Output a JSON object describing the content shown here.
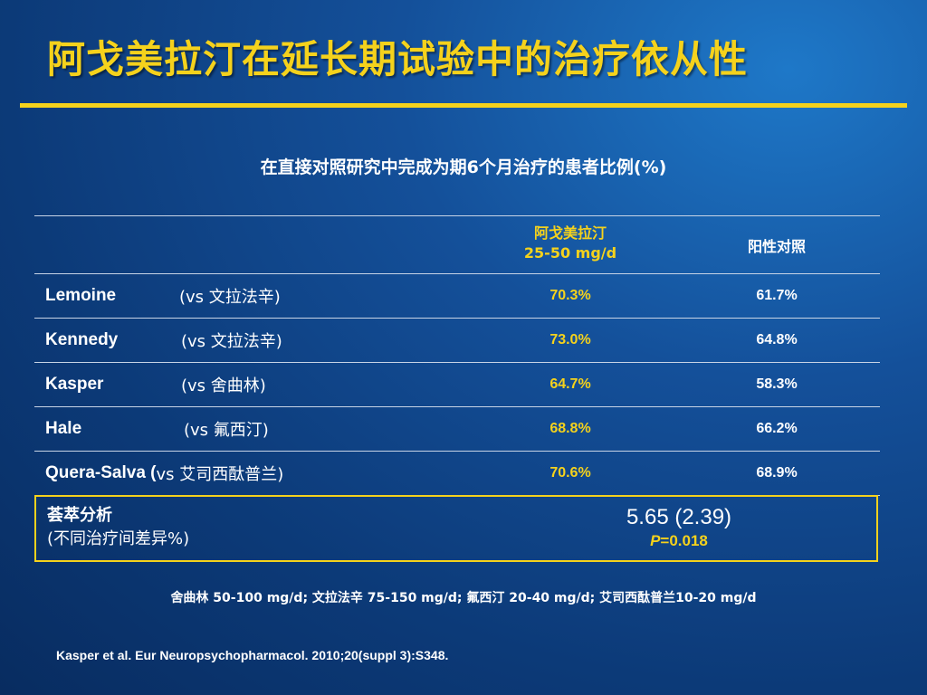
{
  "slide": {
    "title": "阿戈美拉汀在延长期试验中的治疗依从性",
    "subtitle": "在直接对照研究中完成为期6个月治疗的患者比例(%)"
  },
  "table": {
    "header": {
      "col_a_line1": "阿戈美拉汀",
      "col_a_line2": "25-50 mg/d",
      "col_b": "阳性对照"
    },
    "rows": [
      {
        "study": "Lemoine",
        "comparator": "(vs 文拉法辛)",
        "agomelatine": "70.3%",
        "control": "61.7%"
      },
      {
        "study": "Kennedy",
        "comparator": "(vs 文拉法辛)",
        "agomelatine": "73.0%",
        "control": "64.8%"
      },
      {
        "study": "Kasper",
        "comparator": "(vs 舍曲林)",
        "agomelatine": "64.7%",
        "control": "58.3%"
      },
      {
        "study": "Hale",
        "comparator": "(vs 氟西汀)",
        "agomelatine": "68.8%",
        "control": "66.2%"
      },
      {
        "study": "Quera-Salva (",
        "comparator": "vs 艾司西酞普兰)",
        "agomelatine": "70.6%",
        "control": "68.9%"
      }
    ],
    "meta_analysis": {
      "label_line1": "荟萃分析",
      "label_line2": "(不同治疗间差异%)",
      "value": "5.65 (2.39)",
      "p_label": "P",
      "p_value": "=0.018"
    }
  },
  "footnote": "舍曲林 50-100 mg/d; 文拉法辛 75-150 mg/d; 氟西汀 20-40 mg/d; 艾司西酞普兰10-20 mg/d",
  "reference": "Kasper et al. Eur Neuropsychopharmacol. 2010;20(suppl 3):S348.",
  "colors": {
    "accent": "#f5d21c",
    "background": "#0c3a78",
    "text": "#ffffff"
  }
}
